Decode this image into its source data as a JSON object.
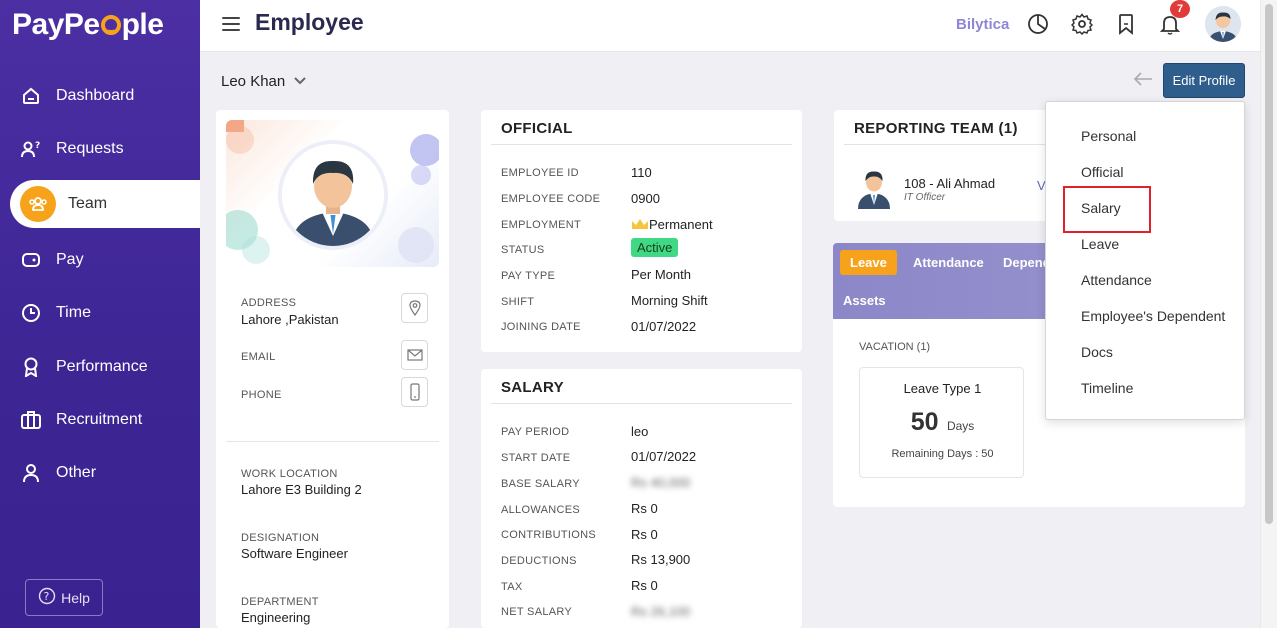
{
  "app": {
    "logo_text_1": "PayPe",
    "logo_text_2": "ple",
    "page_title": "Employee",
    "brand_link": "Bilytica",
    "notification_count": "7"
  },
  "sidebar": {
    "items": [
      {
        "label": "Dashboard",
        "icon": "home-icon"
      },
      {
        "label": "Requests",
        "icon": "user-question-icon"
      },
      {
        "label": "Team",
        "icon": "team-icon",
        "active": true
      },
      {
        "label": "Pay",
        "icon": "wallet-icon"
      },
      {
        "label": "Time",
        "icon": "clock-icon"
      },
      {
        "label": "Performance",
        "icon": "award-icon"
      },
      {
        "label": "Recruitment",
        "icon": "briefcase-icon"
      },
      {
        "label": "Other",
        "icon": "person-icon"
      }
    ],
    "help_label": "Help"
  },
  "subheader": {
    "employee_name": "Leo Khan",
    "edit_label": "Edit Profile"
  },
  "profile": {
    "address_label": "ADDRESS",
    "address_value": "Lahore ,Pakistan",
    "email_label": "EMAIL",
    "phone_label": "PHONE",
    "work_location_label": "WORK LOCATION",
    "work_location_value": "Lahore E3 Building 2",
    "designation_label": "DESIGNATION",
    "designation_value": "Software Engineer",
    "department_label": "DEPARTMENT",
    "department_value": "Engineering"
  },
  "official": {
    "title": "OFFICIAL",
    "rows": [
      {
        "label": "EMPLOYEE ID",
        "value": "110"
      },
      {
        "label": "EMPLOYEE CODE",
        "value": "0900"
      },
      {
        "label": "EMPLOYMENT",
        "value": "Permanent"
      },
      {
        "label": "STATUS",
        "value": "Active"
      },
      {
        "label": "PAY TYPE",
        "value": "Per Month"
      },
      {
        "label": "SHIFT",
        "value": "Morning Shift"
      },
      {
        "label": "JOINING DATE",
        "value": "01/07/2022"
      }
    ]
  },
  "salary": {
    "title": "SALARY",
    "rows": [
      {
        "label": "PAY PERIOD",
        "value": "leo"
      },
      {
        "label": "START DATE",
        "value": "01/07/2022"
      },
      {
        "label": "BASE SALARY",
        "value": "Rs 40,000"
      },
      {
        "label": "ALLOWANCES",
        "value": "Rs 0"
      },
      {
        "label": "CONTRIBUTIONS",
        "value": "Rs 0"
      },
      {
        "label": "DEDUCTIONS",
        "value": "Rs 13,900"
      },
      {
        "label": "TAX",
        "value": "Rs 0"
      },
      {
        "label": "NET SALARY",
        "value": "Rs 26,100"
      }
    ]
  },
  "team": {
    "title": "REPORTING TEAM (1)",
    "member_name": "108 - Ali Ahmad",
    "member_role": "IT Officer",
    "view_link": "V"
  },
  "tabs": {
    "items": [
      "Leave",
      "Attendance",
      "Depend",
      "Assets"
    ],
    "vacation_label": "VACATION (1)",
    "leave_type": "Leave Type 1",
    "days_count": "50",
    "days_label": "Days",
    "remaining": "Remaining Days : 50"
  },
  "dropdown": {
    "items": [
      "Personal",
      "Official",
      "Salary",
      "Leave",
      "Attendance",
      "Employee's Dependent",
      "Docs",
      "Timeline"
    ]
  },
  "colors": {
    "sidebar": "#3d2594",
    "accent": "#f6a21a",
    "primary_button": "#2f5d8c",
    "highlight": "#e0212b",
    "active_status": "#3fd884"
  }
}
